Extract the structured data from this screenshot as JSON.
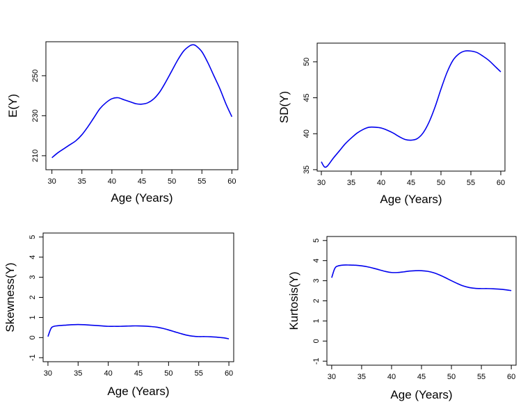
{
  "chart_data": [
    {
      "type": "line",
      "xlabel": "Age (Years)",
      "ylabel": "E(Y)",
      "xlim": [
        29,
        61
      ],
      "ylim": [
        203,
        267
      ],
      "xticks": [
        30,
        35,
        40,
        45,
        50,
        55,
        60
      ],
      "yticks": [
        210,
        230,
        250
      ],
      "x": [
        30,
        31,
        32,
        33,
        34,
        35,
        36,
        37,
        38,
        39,
        40,
        41,
        42,
        43,
        44,
        45,
        46,
        47,
        48,
        49,
        50,
        51,
        52,
        53,
        53.5,
        54,
        55,
        56,
        57,
        58,
        59,
        60
      ],
      "series": [
        {
          "values": [
            209,
            211.5,
            213.5,
            215.5,
            217.5,
            220.5,
            224.5,
            229,
            233.5,
            236.5,
            238.5,
            239,
            238,
            237,
            236,
            235.8,
            236.5,
            238.5,
            242,
            247,
            252.5,
            258,
            262.5,
            265,
            265.5,
            265,
            262,
            256.5,
            250,
            243.5,
            236,
            229.5
          ]
        }
      ],
      "grid": false,
      "line_color": "#0000ee"
    },
    {
      "type": "line",
      "xlabel": "Age (Years)",
      "ylabel": "SD(Y)",
      "xlim": [
        29.3,
        60.7
      ],
      "ylim": [
        34.8,
        52.6
      ],
      "xticks": [
        30,
        35,
        40,
        45,
        50,
        55,
        60
      ],
      "yticks": [
        35,
        40,
        45,
        50
      ],
      "x": [
        30,
        30.5,
        31,
        32,
        33,
        34,
        35,
        36,
        37,
        38,
        39,
        40,
        41,
        42,
        43,
        44,
        45,
        46,
        47,
        48,
        49,
        50,
        51,
        52,
        53,
        54,
        55,
        56,
        57,
        58,
        59,
        60
      ],
      "series": [
        {
          "values": [
            36.1,
            35.4,
            35.5,
            36.6,
            37.6,
            38.6,
            39.4,
            40.1,
            40.6,
            40.9,
            40.9,
            40.8,
            40.5,
            40.1,
            39.6,
            39.2,
            39.1,
            39.3,
            40.1,
            41.6,
            43.7,
            46.2,
            48.5,
            50.2,
            51.1,
            51.5,
            51.5,
            51.3,
            50.8,
            50.2,
            49.4,
            48.6
          ]
        }
      ],
      "grid": false,
      "line_color": "#0000ee"
    },
    {
      "type": "line",
      "xlabel": "Age (Years)",
      "ylabel": "Skewness(Y)",
      "xlim": [
        29.2,
        60.8
      ],
      "ylim": [
        -1.2,
        5.2
      ],
      "xticks": [
        30,
        35,
        40,
        45,
        50,
        55,
        60
      ],
      "yticks": [
        -1,
        0,
        1,
        2,
        3,
        4,
        5
      ],
      "x": [
        30,
        30.5,
        31,
        32,
        33,
        34,
        35,
        36,
        37,
        38,
        39,
        40,
        41,
        42,
        43,
        44,
        45,
        46,
        47,
        48,
        49,
        50,
        51,
        52,
        53,
        54,
        55,
        56,
        57,
        58,
        59,
        60
      ],
      "series": [
        {
          "values": [
            0.05,
            0.45,
            0.56,
            0.6,
            0.62,
            0.64,
            0.65,
            0.64,
            0.62,
            0.6,
            0.58,
            0.56,
            0.56,
            0.56,
            0.57,
            0.58,
            0.58,
            0.57,
            0.55,
            0.52,
            0.46,
            0.38,
            0.29,
            0.2,
            0.12,
            0.07,
            0.05,
            0.05,
            0.04,
            0.02,
            -0.01,
            -0.06
          ]
        }
      ],
      "grid": false,
      "line_color": "#0000ee"
    },
    {
      "type": "line",
      "xlabel": "Age (Years)",
      "ylabel": "Kurtosis(Y)",
      "xlim": [
        29.2,
        60.8
      ],
      "ylim": [
        -1.2,
        5.2
      ],
      "xticks": [
        30,
        35,
        40,
        45,
        50,
        55,
        60
      ],
      "yticks": [
        -1,
        0,
        1,
        2,
        3,
        4,
        5
      ],
      "x": [
        30,
        30.5,
        31,
        32,
        33,
        34,
        35,
        36,
        37,
        38,
        39,
        40,
        41,
        42,
        43,
        44,
        45,
        46,
        47,
        48,
        49,
        50,
        51,
        52,
        53,
        54,
        55,
        56,
        57,
        58,
        59,
        60
      ],
      "series": [
        {
          "values": [
            3.15,
            3.6,
            3.73,
            3.78,
            3.78,
            3.77,
            3.74,
            3.69,
            3.62,
            3.54,
            3.46,
            3.41,
            3.41,
            3.44,
            3.48,
            3.5,
            3.5,
            3.47,
            3.4,
            3.29,
            3.15,
            3.0,
            2.86,
            2.74,
            2.66,
            2.62,
            2.61,
            2.61,
            2.6,
            2.58,
            2.55,
            2.51
          ]
        }
      ],
      "grid": false,
      "line_color": "#0000ee"
    }
  ]
}
